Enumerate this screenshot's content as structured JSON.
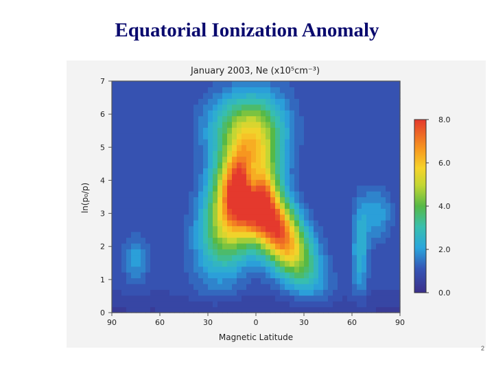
{
  "slide": {
    "title": "Equatorial Ionization Anomaly",
    "page_number": "2"
  },
  "chart_data": {
    "type": "heatmap",
    "title": "January 2003, Ne (x10⁵cm⁻³)",
    "xlabel": "Magnetic Latitude",
    "ylabel": "ln(p₀/p)",
    "x_ticks": [
      "90",
      "60",
      "30",
      "0",
      "30",
      "60",
      "90"
    ],
    "x_tick_values": [
      -90,
      -60,
      -30,
      0,
      30,
      60,
      90
    ],
    "y_ticks": [
      "0",
      "1",
      "2",
      "3",
      "4",
      "5",
      "6",
      "7"
    ],
    "y_tick_values": [
      0,
      1,
      2,
      3,
      4,
      5,
      6,
      7
    ],
    "xlim": [
      -90,
      90
    ],
    "ylim": [
      0,
      7
    ],
    "colorbar": {
      "min": 0.0,
      "max": 8.0,
      "ticks": [
        "8.0",
        "6.0",
        "4.0",
        "2.0",
        "0.0"
      ],
      "tick_values": [
        8,
        6,
        4,
        2,
        0
      ]
    },
    "background_level": 1.0,
    "features": [
      {
        "lat": -15,
        "alt": 3.4,
        "peak": 8.0
      },
      {
        "lat": 10,
        "alt": 2.7,
        "peak": 8.0
      },
      {
        "lat": -8,
        "alt": 5.7,
        "peak": 4.0
      },
      {
        "lat": -75,
        "alt": 1.6,
        "peak": 2.2
      },
      {
        "lat": 65,
        "alt": 1.8,
        "peak": 2.6
      },
      {
        "lat": 75,
        "alt": 3.0,
        "peak": 2.3
      }
    ]
  }
}
